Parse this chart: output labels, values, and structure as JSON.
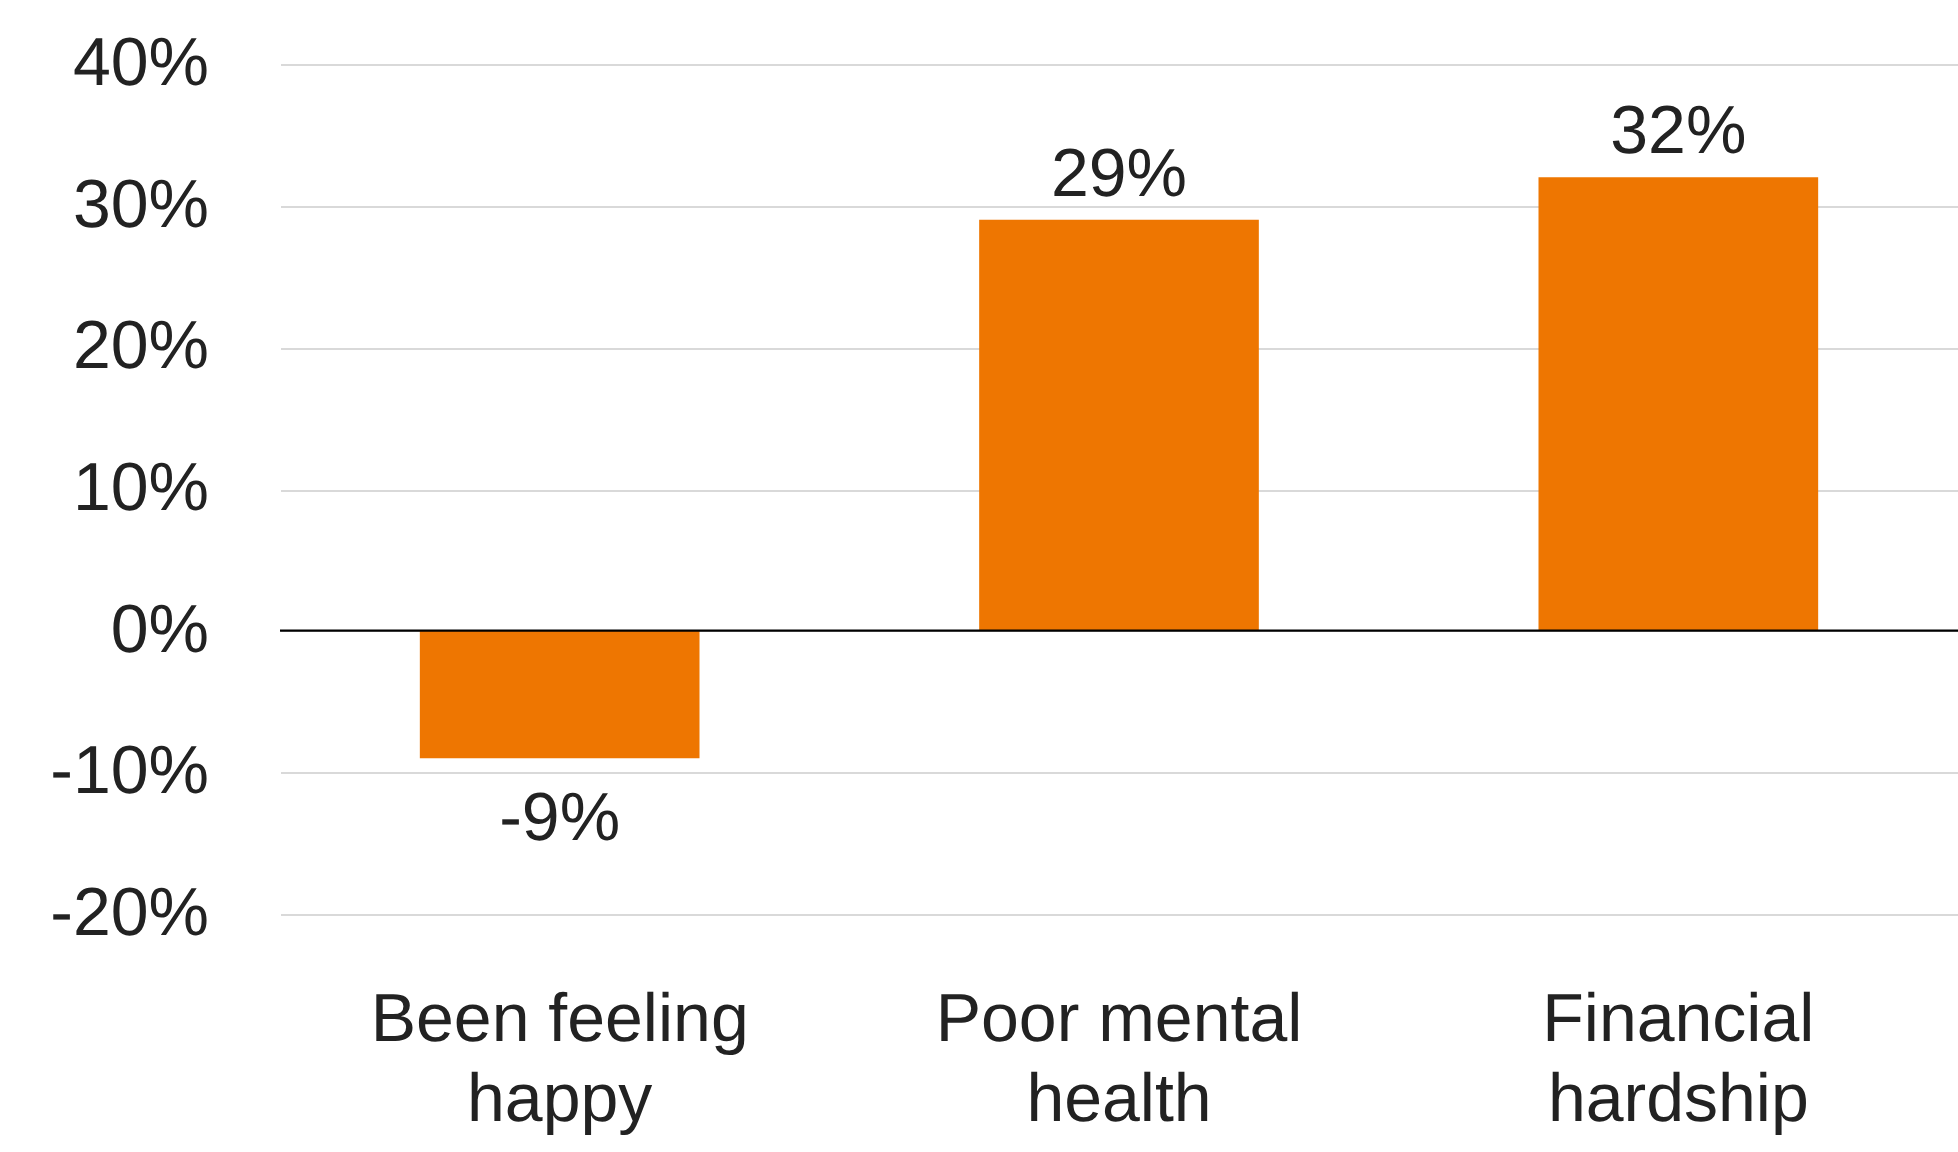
{
  "chart_data": {
    "type": "bar",
    "categories": [
      "Been feeling happy",
      "Poor mental health",
      "Financial hardship"
    ],
    "values": [
      -9,
      29,
      32
    ],
    "color": "#ee7601",
    "value_labels": [
      "-9%",
      "29%",
      "32%"
    ],
    "ylim": [
      -20,
      40
    ],
    "yticks": [
      {
        "value": -20,
        "label": "-20%"
      },
      {
        "value": -10,
        "label": "-10%"
      },
      {
        "value": 0,
        "label": "0%"
      },
      {
        "value": 10,
        "label": "10%"
      },
      {
        "value": 20,
        "label": "20%"
      },
      {
        "value": 30,
        "label": "30%"
      },
      {
        "value": 40,
        "label": "40%"
      }
    ],
    "grid": "y"
  }
}
